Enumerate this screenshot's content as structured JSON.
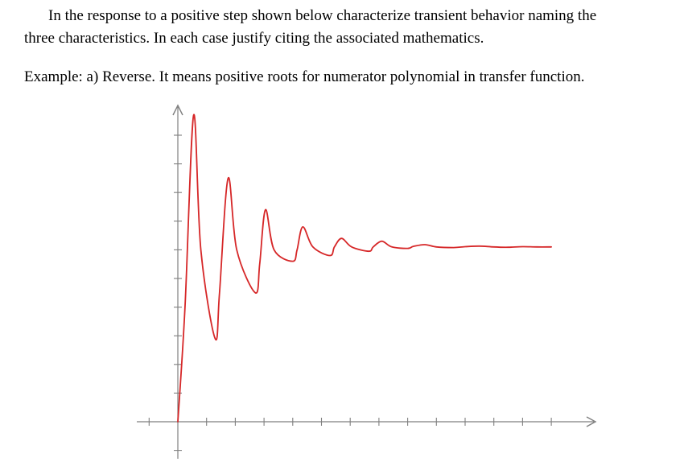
{
  "question": {
    "line1": "In the response to a positive step shown below characterize transient behavior naming the",
    "line2": "three characteristics. In each case justify citing the associated mathematics."
  },
  "example": "Example: a) Reverse. It means positive roots for numerator polynomial in transfer function.",
  "colors": {
    "curve": "#d62728",
    "axes": "#7f7f7f"
  },
  "chart_data": {
    "type": "line",
    "title": "",
    "xlabel": "",
    "ylabel": "",
    "grid": false,
    "legend": "none",
    "xlim": [
      -1,
      14.5
    ],
    "ylim": [
      -1,
      11
    ],
    "x_ticks": [
      0,
      1,
      2,
      3,
      4,
      5,
      6,
      7,
      8,
      9,
      10,
      11,
      12,
      13
    ],
    "y_ticks": [
      1,
      2,
      3,
      4,
      5,
      6,
      7,
      8,
      9,
      10
    ],
    "series": [
      {
        "x": [
          0,
          0.25,
          0.55,
          0.8,
          1.3,
          1.45,
          1.75,
          2.05,
          2.7,
          2.85,
          3.05,
          3.35,
          4.0,
          4.15,
          4.35,
          4.7,
          5.3,
          5.45,
          5.7,
          6.05,
          6.65,
          6.8,
          7.1,
          7.45,
          8.0,
          8.2,
          8.6,
          9.0,
          9.6,
          10.0,
          10.5,
          11.0,
          11.5,
          12.0,
          12.5,
          13.0
        ],
        "y": [
          0,
          4.0,
          10.7,
          6.0,
          2.9,
          4.5,
          8.5,
          6.0,
          4.5,
          5.5,
          7.4,
          6.0,
          5.6,
          6.0,
          6.8,
          6.1,
          5.8,
          6.1,
          6.4,
          6.1,
          5.95,
          6.1,
          6.3,
          6.1,
          6.05,
          6.12,
          6.18,
          6.1,
          6.08,
          6.11,
          6.13,
          6.1,
          6.09,
          6.11,
          6.1,
          6.1
        ]
      }
    ]
  }
}
